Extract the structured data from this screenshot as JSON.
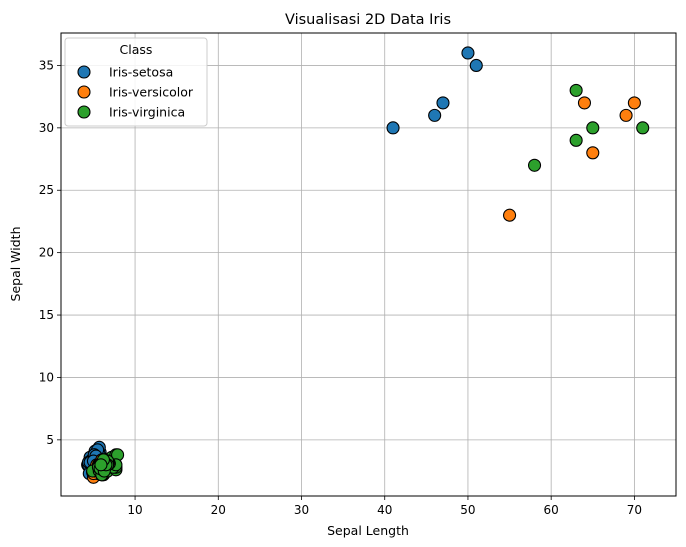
{
  "chart_data": {
    "type": "scatter",
    "title": "Visualisasi 2D Data Iris",
    "xlabel": "Sepal Length",
    "ylabel": "Sepal Width",
    "xlim": [
      1.1,
      75.0
    ],
    "ylim": [
      0.5,
      37.6
    ],
    "xticks": [
      10,
      20,
      30,
      40,
      50,
      60,
      70
    ],
    "yticks": [
      5,
      10,
      15,
      20,
      25,
      30,
      35
    ],
    "grid": true,
    "legend": {
      "title": "Class",
      "position": "upper-left"
    },
    "series": [
      {
        "name": "Iris-setosa",
        "color": "#1f77b4",
        "points": [
          [
            41,
            30
          ],
          [
            46,
            31
          ],
          [
            47,
            32
          ],
          [
            50,
            36
          ],
          [
            51,
            35
          ],
          [
            5.1,
            3.5
          ],
          [
            4.9,
            3.0
          ],
          [
            4.7,
            3.2
          ],
          [
            4.6,
            3.1
          ],
          [
            5.0,
            3.6
          ],
          [
            5.4,
            3.9
          ],
          [
            4.6,
            3.4
          ],
          [
            5.0,
            3.4
          ],
          [
            4.4,
            2.9
          ],
          [
            4.9,
            3.1
          ],
          [
            5.4,
            3.7
          ],
          [
            4.8,
            3.4
          ],
          [
            4.8,
            3.0
          ],
          [
            4.3,
            3.0
          ],
          [
            5.8,
            4.0
          ],
          [
            5.7,
            4.4
          ],
          [
            5.4,
            3.9
          ],
          [
            5.1,
            3.5
          ],
          [
            5.7,
            3.8
          ],
          [
            5.1,
            3.8
          ],
          [
            5.4,
            3.4
          ],
          [
            5.1,
            3.7
          ],
          [
            4.6,
            3.6
          ],
          [
            5.1,
            3.3
          ],
          [
            4.8,
            3.4
          ],
          [
            5.0,
            3.0
          ],
          [
            5.0,
            3.4
          ],
          [
            5.2,
            3.5
          ],
          [
            5.2,
            3.4
          ],
          [
            4.7,
            3.2
          ],
          [
            4.8,
            3.1
          ],
          [
            5.4,
            3.4
          ],
          [
            5.2,
            4.1
          ],
          [
            5.5,
            4.2
          ],
          [
            4.9,
            3.1
          ],
          [
            5.0,
            3.2
          ],
          [
            5.5,
            3.5
          ],
          [
            4.4,
            3.0
          ],
          [
            5.1,
            3.4
          ],
          [
            5.0,
            3.5
          ],
          [
            4.5,
            2.3
          ],
          [
            4.4,
            3.2
          ],
          [
            5.0,
            3.5
          ],
          [
            5.1,
            3.8
          ],
          [
            4.8,
            3.0
          ],
          [
            5.1,
            3.8
          ],
          [
            4.6,
            3.2
          ],
          [
            5.3,
            3.7
          ],
          [
            5.0,
            3.3
          ]
        ]
      },
      {
        "name": "Iris-versicolor",
        "color": "#ff7f0e",
        "points": [
          [
            55,
            23
          ],
          [
            64,
            32
          ],
          [
            65,
            28
          ],
          [
            69,
            31
          ],
          [
            70,
            32
          ],
          [
            5.0,
            2.0
          ],
          [
            7.0,
            3.2
          ],
          [
            6.4,
            3.2
          ],
          [
            6.9,
            3.1
          ],
          [
            5.5,
            2.3
          ],
          [
            6.5,
            2.8
          ],
          [
            5.7,
            2.8
          ],
          [
            6.3,
            3.3
          ],
          [
            4.9,
            2.4
          ],
          [
            6.6,
            2.9
          ],
          [
            5.2,
            2.7
          ],
          [
            5.9,
            3.0
          ],
          [
            6.0,
            2.2
          ],
          [
            6.1,
            2.9
          ],
          [
            5.6,
            2.9
          ],
          [
            6.7,
            3.1
          ],
          [
            5.6,
            3.0
          ],
          [
            5.8,
            2.7
          ],
          [
            6.2,
            2.2
          ],
          [
            5.6,
            2.5
          ],
          [
            5.9,
            3.2
          ],
          [
            6.1,
            2.8
          ],
          [
            6.3,
            2.5
          ],
          [
            6.1,
            2.8
          ],
          [
            6.4,
            2.9
          ],
          [
            6.6,
            3.0
          ],
          [
            6.8,
            2.8
          ],
          [
            6.7,
            3.0
          ],
          [
            6.0,
            2.9
          ],
          [
            5.7,
            2.6
          ],
          [
            5.5,
            2.4
          ],
          [
            5.5,
            2.4
          ],
          [
            5.8,
            2.7
          ],
          [
            6.0,
            2.7
          ],
          [
            5.4,
            3.0
          ],
          [
            6.0,
            3.4
          ],
          [
            6.7,
            3.1
          ],
          [
            6.3,
            2.3
          ],
          [
            5.6,
            3.0
          ],
          [
            5.5,
            2.5
          ],
          [
            5.5,
            2.6
          ],
          [
            6.1,
            3.0
          ],
          [
            5.8,
            2.6
          ],
          [
            5.0,
            2.3
          ],
          [
            5.6,
            2.7
          ],
          [
            5.7,
            3.0
          ],
          [
            5.7,
            2.9
          ],
          [
            6.2,
            2.9
          ],
          [
            5.1,
            2.5
          ],
          [
            5.7,
            2.8
          ]
        ]
      },
      {
        "name": "Iris-virginica",
        "color": "#2ca02c",
        "points": [
          [
            58,
            27
          ],
          [
            63,
            33
          ],
          [
            63,
            29
          ],
          [
            65,
            30
          ],
          [
            71,
            30
          ],
          [
            6.3,
            3.3
          ],
          [
            5.8,
            2.7
          ],
          [
            7.1,
            3.0
          ],
          [
            6.3,
            2.9
          ],
          [
            6.5,
            3.0
          ],
          [
            7.6,
            3.0
          ],
          [
            4.9,
            2.5
          ],
          [
            7.3,
            2.9
          ],
          [
            6.7,
            2.5
          ],
          [
            7.2,
            3.6
          ],
          [
            6.5,
            3.2
          ],
          [
            6.4,
            2.7
          ],
          [
            6.8,
            3.0
          ],
          [
            5.7,
            2.5
          ],
          [
            5.8,
            2.8
          ],
          [
            6.4,
            3.2
          ],
          [
            6.5,
            3.0
          ],
          [
            7.7,
            3.8
          ],
          [
            7.7,
            2.6
          ],
          [
            6.0,
            2.2
          ],
          [
            6.9,
            3.2
          ],
          [
            5.6,
            2.8
          ],
          [
            7.7,
            2.8
          ],
          [
            6.3,
            2.7
          ],
          [
            6.7,
            3.3
          ],
          [
            7.2,
            3.2
          ],
          [
            6.2,
            2.8
          ],
          [
            6.1,
            3.0
          ],
          [
            6.4,
            2.8
          ],
          [
            7.2,
            3.0
          ],
          [
            7.4,
            2.8
          ],
          [
            7.9,
            3.8
          ],
          [
            6.4,
            2.8
          ],
          [
            6.3,
            2.8
          ],
          [
            6.1,
            2.6
          ],
          [
            7.7,
            3.0
          ],
          [
            6.3,
            3.4
          ],
          [
            6.4,
            3.1
          ],
          [
            6.0,
            3.0
          ],
          [
            6.9,
            3.1
          ],
          [
            6.7,
            3.1
          ],
          [
            6.9,
            3.1
          ],
          [
            5.8,
            2.7
          ],
          [
            6.8,
            3.2
          ],
          [
            6.7,
            3.3
          ],
          [
            6.7,
            3.0
          ],
          [
            6.3,
            2.5
          ],
          [
            6.5,
            3.0
          ],
          [
            6.2,
            3.4
          ],
          [
            5.9,
            3.0
          ]
        ]
      }
    ]
  }
}
